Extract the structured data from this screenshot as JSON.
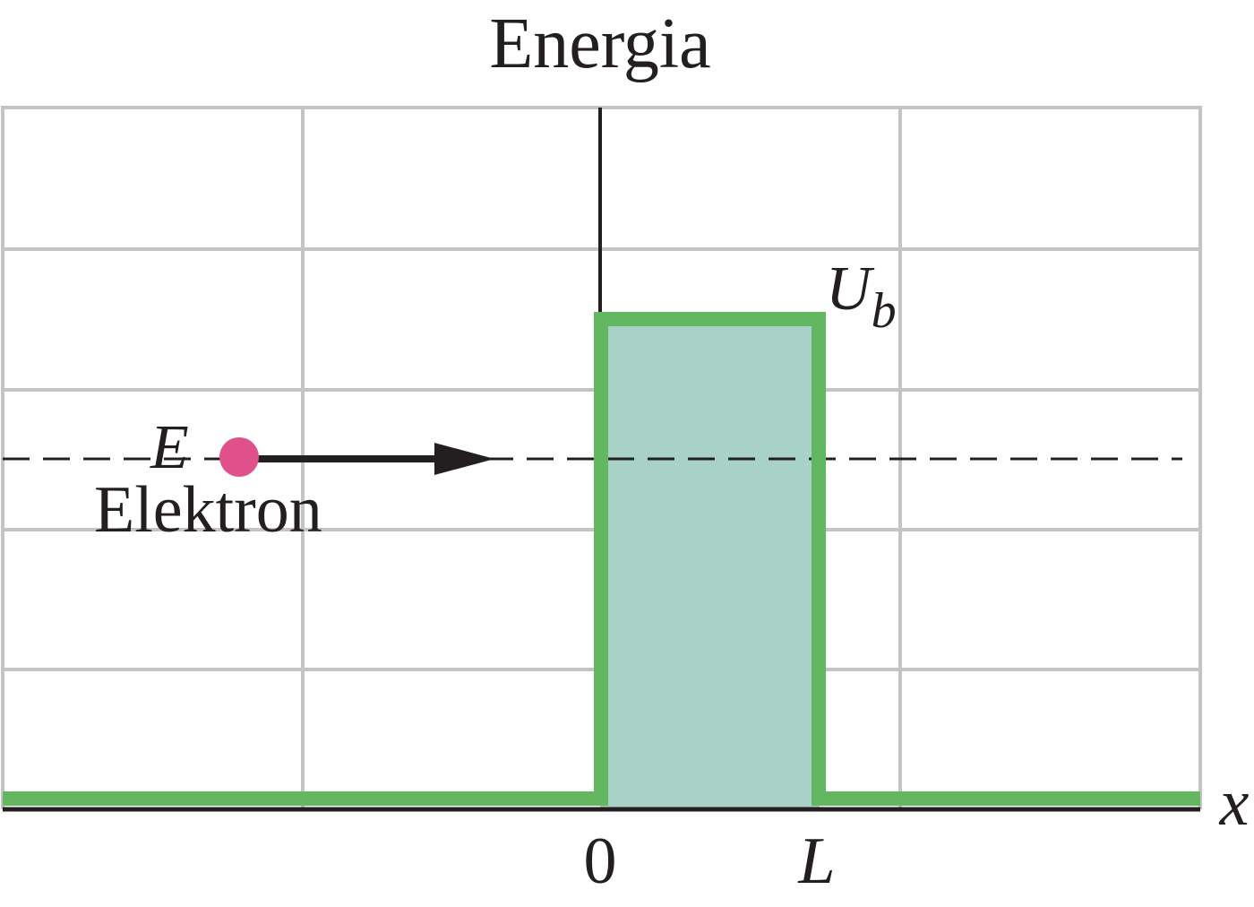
{
  "title": "Energia",
  "labels": {
    "barrier_main": "U",
    "barrier_sub": "b",
    "energy": "E",
    "particle": "Elektron",
    "origin": "0",
    "width": "L",
    "axis": "x"
  }
}
